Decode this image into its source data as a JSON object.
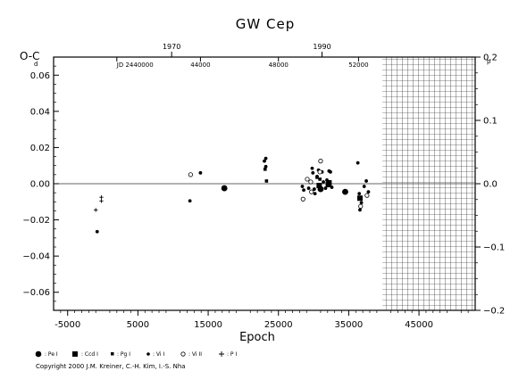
{
  "chart_data": {
    "type": "scatter",
    "title": "GW Cep",
    "ylabel": "O-C",
    "ylabel_unit": "d",
    "xlabel": "Epoch",
    "right_axis_unit": "p",
    "xlim": [
      -7000,
      53000
    ],
    "ylim": [
      -0.07,
      0.07
    ],
    "right_ylim": [
      -0.2,
      0.2
    ],
    "x_ticks": [
      -5000,
      5000,
      15000,
      25000,
      35000,
      45000
    ],
    "y_ticks": [
      0.06,
      0.04,
      0.02,
      0.0,
      -0.02,
      -0.04,
      -0.06
    ],
    "y_tick_labels": [
      "0.06",
      "0.04",
      "0.02",
      "0.00",
      "−0.02",
      "−0.04",
      "−0.06"
    ],
    "right_ticks": [
      0.2,
      0.1,
      0.0,
      -0.1,
      -0.2
    ],
    "right_tick_labels": [
      "0.2",
      "0.1",
      "0.0",
      "−0.1",
      "−0.2"
    ],
    "top_year_ticks": [
      {
        "label": "1970",
        "epoch": 9800
      },
      {
        "label": "1990",
        "epoch": 31200
      }
    ],
    "jd_ticks": [
      {
        "label": "JD 2440000",
        "epoch": 2000
      },
      {
        "label": "44000",
        "epoch": 13900
      },
      {
        "label": "48000",
        "epoch": 25000
      },
      {
        "label": "52000",
        "epoch": 36400
      }
    ],
    "future_shaded_from_epoch": 39800,
    "grid": false,
    "legend_position": "bottom-left",
    "series": [
      {
        "name": "Pe I",
        "marker": "big-dot",
        "points": [
          [
            17300,
            -0.0025
          ],
          [
            34500,
            -0.0045
          ],
          [
            31000,
            -0.003
          ]
        ]
      },
      {
        "name": "Ccd I",
        "marker": "square",
        "points": [
          [
            30800,
            -0.001
          ],
          [
            32100,
            -0.0005
          ],
          [
            36600,
            -0.008
          ],
          [
            32200,
            0.0005
          ]
        ]
      },
      {
        "name": "Pg I",
        "marker": "small-square",
        "points": [
          [
            23300,
            0.0015
          ],
          [
            23100,
            0.008
          ],
          [
            30500,
            0.0035
          ],
          [
            30900,
            0.0025
          ]
        ]
      },
      {
        "name": "Vi I",
        "marker": "dot",
        "points": [
          [
            -800,
            -0.0265
          ],
          [
            12400,
            -0.0095
          ],
          [
            13900,
            0.006
          ],
          [
            23000,
            0.0125
          ],
          [
            23200,
            0.014
          ],
          [
            23200,
            0.0095
          ],
          [
            28400,
            -0.0015
          ],
          [
            28600,
            -0.0035
          ],
          [
            29300,
            -0.0025
          ],
          [
            29800,
            0.0085
          ],
          [
            29900,
            0.006
          ],
          [
            30100,
            -0.003
          ],
          [
            30200,
            -0.0055
          ],
          [
            30500,
            0.004
          ],
          [
            30700,
            0.0075
          ],
          [
            31200,
            0.0065
          ],
          [
            31400,
            0.001
          ],
          [
            31700,
            -0.0025
          ],
          [
            31900,
            0.002
          ],
          [
            32200,
            0.007
          ],
          [
            32400,
            0.0065
          ],
          [
            32600,
            -0.002
          ],
          [
            36300,
            0.0115
          ],
          [
            36500,
            -0.0055
          ],
          [
            36600,
            -0.0145
          ],
          [
            36800,
            -0.0105
          ],
          [
            37200,
            -0.0015
          ],
          [
            37500,
            0.0015
          ],
          [
            37800,
            -0.0045
          ]
        ]
      },
      {
        "name": "Vi II",
        "marker": "open-circle",
        "points": [
          [
            12500,
            0.005
          ],
          [
            28500,
            -0.0085
          ],
          [
            29100,
            0.0025
          ],
          [
            29600,
            0.001
          ],
          [
            30900,
            0.0065
          ],
          [
            31000,
            0.0125
          ],
          [
            29700,
            -0.0045
          ],
          [
            37600,
            -0.0065
          ],
          [
            36700,
            -0.0125
          ]
        ]
      },
      {
        "name": "P I",
        "marker": "plus",
        "points": [
          [
            -200,
            -0.0075
          ],
          [
            -200,
            -0.0095
          ],
          [
            -1000,
            -0.0145
          ]
        ]
      }
    ]
  },
  "legend": {
    "items": [
      {
        "symbol": "big-dot",
        "label": ": Pe I"
      },
      {
        "symbol": "square",
        "label": ": Ccd I"
      },
      {
        "symbol": "small-square",
        "label": ": Pg I"
      },
      {
        "symbol": "dot",
        "label": ": Vi I"
      },
      {
        "symbol": "open-circle",
        "label": ": Vi II"
      },
      {
        "symbol": "plus",
        "label": ": P I"
      }
    ]
  },
  "copyright": "Copyright 2000 J.M. Kreiner, C.-H. Kim, I.-S. Nha"
}
